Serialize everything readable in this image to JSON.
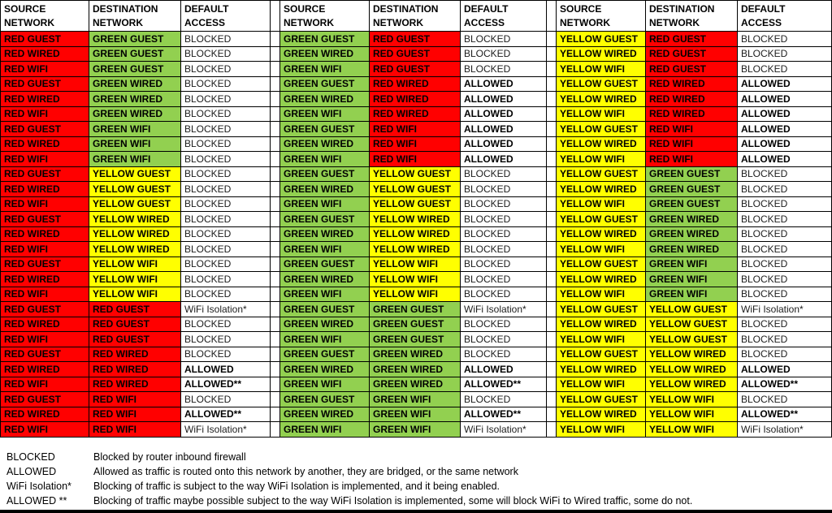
{
  "colors": {
    "RED": "#ff0000",
    "GREEN": "#92d050",
    "YELLOW": "#ffff00",
    "border": "#000000",
    "bottom_bar": "#000000"
  },
  "header": {
    "source_line1": "SOURCE",
    "source_line2": "NETWORK",
    "destination_line1": "DESTINATION",
    "destination_line2": "NETWORK",
    "access_line1": "DEFAULT",
    "access_line2": "ACCESS"
  },
  "groups": [
    {
      "rows": [
        {
          "s": "RED GUEST",
          "d": "GREEN GUEST",
          "a": "BLOCKED"
        },
        {
          "s": "RED WIRED",
          "d": "GREEN GUEST",
          "a": "BLOCKED"
        },
        {
          "s": "RED WIFI",
          "d": "GREEN GUEST",
          "a": "BLOCKED"
        },
        {
          "s": "RED GUEST",
          "d": "GREEN WIRED",
          "a": "BLOCKED"
        },
        {
          "s": "RED WIRED",
          "d": "GREEN WIRED",
          "a": "BLOCKED"
        },
        {
          "s": "RED WIFI",
          "d": "GREEN WIRED",
          "a": "BLOCKED"
        },
        {
          "s": "RED GUEST",
          "d": "GREEN WIFI",
          "a": "BLOCKED"
        },
        {
          "s": "RED WIRED",
          "d": "GREEN WIFI",
          "a": "BLOCKED"
        },
        {
          "s": "RED WIFI",
          "d": "GREEN WIFI",
          "a": "BLOCKED"
        },
        {
          "s": "RED GUEST",
          "d": "YELLOW GUEST",
          "a": "BLOCKED"
        },
        {
          "s": "RED WIRED",
          "d": "YELLOW GUEST",
          "a": "BLOCKED"
        },
        {
          "s": "RED WIFI",
          "d": "YELLOW GUEST",
          "a": "BLOCKED"
        },
        {
          "s": "RED GUEST",
          "d": "YELLOW WIRED",
          "a": "BLOCKED"
        },
        {
          "s": "RED WIRED",
          "d": "YELLOW WIRED",
          "a": "BLOCKED"
        },
        {
          "s": "RED WIFI",
          "d": "YELLOW WIRED",
          "a": "BLOCKED"
        },
        {
          "s": "RED GUEST",
          "d": "YELLOW WIFI",
          "a": "BLOCKED"
        },
        {
          "s": "RED WIRED",
          "d": "YELLOW WIFI",
          "a": "BLOCKED"
        },
        {
          "s": "RED WIFI",
          "d": "YELLOW WIFI",
          "a": "BLOCKED"
        },
        {
          "s": "RED GUEST",
          "d": "RED GUEST",
          "a": "WiFi Isolation*"
        },
        {
          "s": "RED WIRED",
          "d": "RED GUEST",
          "a": "BLOCKED"
        },
        {
          "s": "RED WIFI",
          "d": "RED GUEST",
          "a": "BLOCKED"
        },
        {
          "s": "RED GUEST",
          "d": "RED WIRED",
          "a": "BLOCKED"
        },
        {
          "s": "RED WIRED",
          "d": "RED WIRED",
          "a": "ALLOWED"
        },
        {
          "s": "RED WIFI",
          "d": "RED WIRED",
          "a": "ALLOWED**"
        },
        {
          "s": "RED GUEST",
          "d": "RED WIFI",
          "a": "BLOCKED"
        },
        {
          "s": "RED WIRED",
          "d": "RED WIFI",
          "a": "ALLOWED**"
        },
        {
          "s": "RED WIFI",
          "d": "RED WIFI",
          "a": "WiFi Isolation*"
        }
      ]
    },
    {
      "rows": [
        {
          "s": "GREEN GUEST",
          "d": "RED GUEST",
          "a": "BLOCKED"
        },
        {
          "s": "GREEN WIRED",
          "d": "RED GUEST",
          "a": "BLOCKED"
        },
        {
          "s": "GREEN WIFI",
          "d": "RED GUEST",
          "a": "BLOCKED"
        },
        {
          "s": "GREEN GUEST",
          "d": "RED WIRED",
          "a": "ALLOWED"
        },
        {
          "s": "GREEN WIRED",
          "d": "RED WIRED",
          "a": "ALLOWED"
        },
        {
          "s": "GREEN WIFI",
          "d": "RED WIRED",
          "a": "ALLOWED"
        },
        {
          "s": "GREEN GUEST",
          "d": "RED WIFI",
          "a": "ALLOWED"
        },
        {
          "s": "GREEN WIRED",
          "d": "RED WIFI",
          "a": "ALLOWED"
        },
        {
          "s": "GREEN WIFI",
          "d": "RED WIFI",
          "a": "ALLOWED"
        },
        {
          "s": "GREEN GUEST",
          "d": "YELLOW GUEST",
          "a": "BLOCKED"
        },
        {
          "s": "GREEN WIRED",
          "d": "YELLOW GUEST",
          "a": "BLOCKED"
        },
        {
          "s": "GREEN WIFI",
          "d": "YELLOW GUEST",
          "a": "BLOCKED"
        },
        {
          "s": "GREEN GUEST",
          "d": "YELLOW WIRED",
          "a": "BLOCKED"
        },
        {
          "s": "GREEN WIRED",
          "d": "YELLOW WIRED",
          "a": "BLOCKED"
        },
        {
          "s": "GREEN WIFI",
          "d": "YELLOW WIRED",
          "a": "BLOCKED"
        },
        {
          "s": "GREEN GUEST",
          "d": "YELLOW WIFI",
          "a": "BLOCKED"
        },
        {
          "s": "GREEN WIRED",
          "d": "YELLOW WIFI",
          "a": "BLOCKED"
        },
        {
          "s": "GREEN WIFI",
          "d": "YELLOW WIFI",
          "a": "BLOCKED"
        },
        {
          "s": "GREEN GUEST",
          "d": "GREEN GUEST",
          "a": "WiFi Isolation*"
        },
        {
          "s": "GREEN WIRED",
          "d": "GREEN GUEST",
          "a": "BLOCKED"
        },
        {
          "s": "GREEN WIFI",
          "d": "GREEN GUEST",
          "a": "BLOCKED"
        },
        {
          "s": "GREEN GUEST",
          "d": "GREEN WIRED",
          "a": "BLOCKED"
        },
        {
          "s": "GREEN WIRED",
          "d": "GREEN WIRED",
          "a": "ALLOWED"
        },
        {
          "s": "GREEN WIFI",
          "d": "GREEN WIRED",
          "a": "ALLOWED**"
        },
        {
          "s": "GREEN GUEST",
          "d": "GREEN WIFI",
          "a": "BLOCKED"
        },
        {
          "s": "GREEN WIRED",
          "d": "GREEN WIFI",
          "a": "ALLOWED**"
        },
        {
          "s": "GREEN WIFI",
          "d": "GREEN WIFI",
          "a": "WiFi Isolation*"
        }
      ]
    },
    {
      "rows": [
        {
          "s": "YELLOW GUEST",
          "d": "RED GUEST",
          "a": "BLOCKED"
        },
        {
          "s": "YELLOW WIRED",
          "d": "RED GUEST",
          "a": "BLOCKED"
        },
        {
          "s": "YELLOW WIFI",
          "d": "RED GUEST",
          "a": "BLOCKED"
        },
        {
          "s": "YELLOW GUEST",
          "d": "RED WIRED",
          "a": "ALLOWED"
        },
        {
          "s": "YELLOW WIRED",
          "d": "RED WIRED",
          "a": "ALLOWED"
        },
        {
          "s": "YELLOW WIFI",
          "d": "RED WIRED",
          "a": "ALLOWED"
        },
        {
          "s": "YELLOW GUEST",
          "d": "RED WIFI",
          "a": "ALLOWED"
        },
        {
          "s": "YELLOW WIRED",
          "d": "RED WIFI",
          "a": "ALLOWED"
        },
        {
          "s": "YELLOW WIFI",
          "d": "RED WIFI",
          "a": "ALLOWED"
        },
        {
          "s": "YELLOW GUEST",
          "d": "GREEN GUEST",
          "a": "BLOCKED"
        },
        {
          "s": "YELLOW WIRED",
          "d": "GREEN GUEST",
          "a": "BLOCKED"
        },
        {
          "s": "YELLOW WIFI",
          "d": "GREEN GUEST",
          "a": "BLOCKED"
        },
        {
          "s": "YELLOW GUEST",
          "d": "GREEN WIRED",
          "a": "BLOCKED"
        },
        {
          "s": "YELLOW WIRED",
          "d": "GREEN WIRED",
          "a": "BLOCKED"
        },
        {
          "s": "YELLOW WIFI",
          "d": "GREEN WIRED",
          "a": "BLOCKED"
        },
        {
          "s": "YELLOW GUEST",
          "d": "GREEN WIFI",
          "a": "BLOCKED"
        },
        {
          "s": "YELLOW WIRED",
          "d": "GREEN WIFI",
          "a": "BLOCKED"
        },
        {
          "s": "YELLOW WIFI",
          "d": "GREEN WIFI",
          "a": "BLOCKED"
        },
        {
          "s": "YELLOW GUEST",
          "d": "YELLOW GUEST",
          "a": "WiFi Isolation*"
        },
        {
          "s": "YELLOW WIRED",
          "d": "YELLOW GUEST",
          "a": "BLOCKED"
        },
        {
          "s": "YELLOW WIFI",
          "d": "YELLOW GUEST",
          "a": "BLOCKED"
        },
        {
          "s": "YELLOW GUEST",
          "d": "YELLOW WIRED",
          "a": "BLOCKED"
        },
        {
          "s": "YELLOW WIRED",
          "d": "YELLOW WIRED",
          "a": "ALLOWED"
        },
        {
          "s": "YELLOW WIFI",
          "d": "YELLOW WIRED",
          "a": "ALLOWED**"
        },
        {
          "s": "YELLOW GUEST",
          "d": "YELLOW WIFI",
          "a": "BLOCKED"
        },
        {
          "s": "YELLOW WIRED",
          "d": "YELLOW WIFI",
          "a": "ALLOWED**"
        },
        {
          "s": "YELLOW WIFI",
          "d": "YELLOW WIFI",
          "a": "WiFi Isolation*"
        }
      ]
    }
  ],
  "legend": [
    {
      "term": "BLOCKED",
      "desc": "Blocked by router inbound firewall"
    },
    {
      "term": "ALLOWED",
      "desc": "Allowed as traffic is routed onto this network by another, they are bridged, or the same network"
    },
    {
      "term": "WiFi Isolation*",
      "desc": "Blocking of traffic is subject to the way WiFi Isolation is implemented, and it being enabled."
    },
    {
      "term": "ALLOWED **",
      "desc": "Blocking of traffic maybe possible subject to the way WiFi Isolation is implemented, some will block WiFi to Wired traffic, some do not."
    }
  ]
}
